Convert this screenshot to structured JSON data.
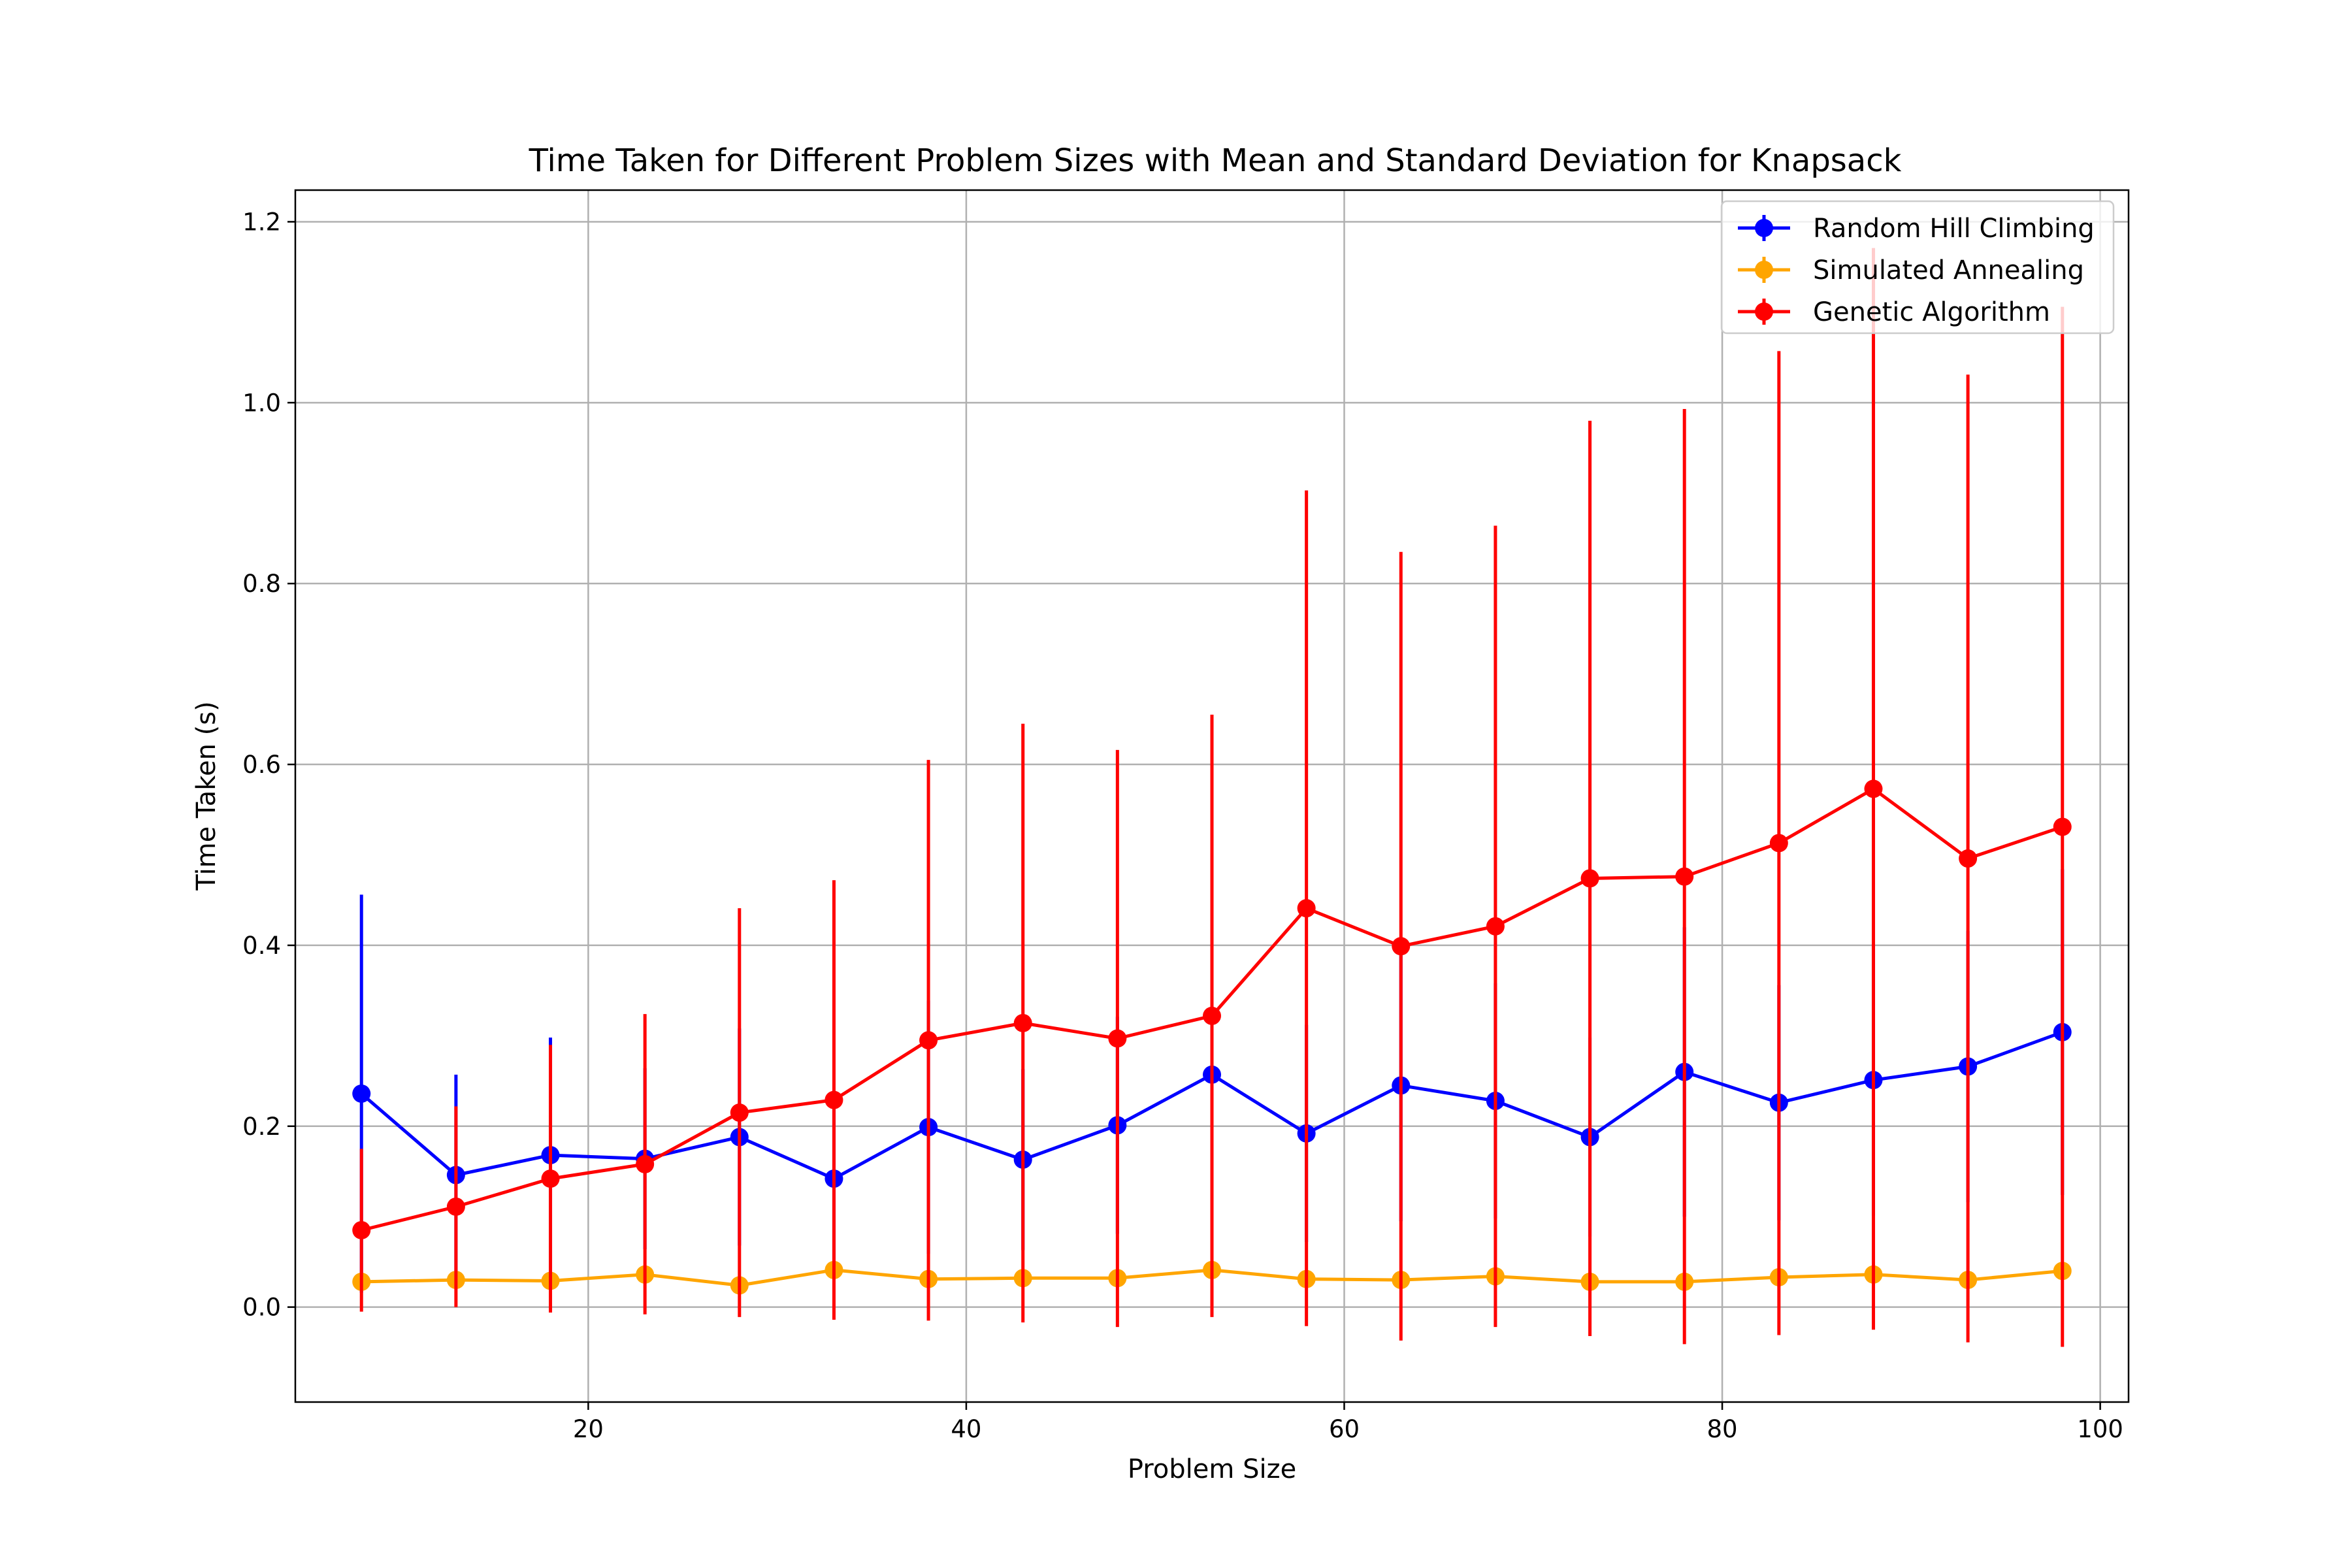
{
  "chart_data": {
    "type": "line",
    "title": "Time Taken for Different Problem Sizes with Mean and Standard Deviation for Knapsack",
    "xlabel": "Problem Size",
    "ylabel": "Time Taken (s)",
    "xlim": [
      4.5,
      101.5
    ],
    "ylim": [
      -0.105,
      1.235
    ],
    "xticks": [
      20,
      40,
      60,
      80,
      100
    ],
    "yticks": [
      0.0,
      0.2,
      0.4,
      0.6,
      0.8,
      1.0,
      1.2
    ],
    "xtick_labels": [
      "20",
      "40",
      "60",
      "80",
      "100"
    ],
    "ytick_labels": [
      "0.0",
      "0.2",
      "0.4",
      "0.6",
      "0.8",
      "1.0",
      "1.2"
    ],
    "grid": true,
    "legend_position": "top-right",
    "x": [
      8,
      13,
      18,
      23,
      28,
      33,
      38,
      43,
      48,
      53,
      58,
      63,
      68,
      73,
      78,
      83,
      88,
      93,
      98
    ],
    "series": [
      {
        "name": "Random Hill Climbing",
        "color": "#0000ff",
        "values": [
          0.236,
          0.146,
          0.168,
          0.164,
          0.188,
          0.142,
          0.199,
          0.163,
          0.201,
          0.257,
          0.192,
          0.245,
          0.228,
          0.188,
          0.26,
          0.226,
          0.251,
          0.266,
          0.304
        ],
        "std": [
          0.22,
          0.111,
          0.13,
          0.1,
          0.12,
          0.09,
          0.14,
          0.1,
          0.12,
          0.17,
          0.12,
          0.15,
          0.13,
          0.11,
          0.16,
          0.13,
          0.15,
          0.15,
          0.18
        ]
      },
      {
        "name": "Simulated Annealing",
        "color": "#ffa500",
        "values": [
          0.028,
          0.03,
          0.029,
          0.036,
          0.024,
          0.041,
          0.031,
          0.032,
          0.032,
          0.041,
          0.031,
          0.03,
          0.034,
          0.028,
          0.028,
          0.033,
          0.036,
          0.03,
          0.04
        ],
        "std": [
          0.006,
          0.006,
          0.006,
          0.007,
          0.005,
          0.008,
          0.006,
          0.006,
          0.006,
          0.008,
          0.006,
          0.006,
          0.007,
          0.006,
          0.006,
          0.007,
          0.007,
          0.006,
          0.008
        ]
      },
      {
        "name": "Genetic Algorithm",
        "color": "#ff0000",
        "values": [
          0.085,
          0.111,
          0.142,
          0.158,
          0.215,
          0.229,
          0.295,
          0.314,
          0.297,
          0.322,
          0.441,
          0.399,
          0.421,
          0.474,
          0.476,
          0.513,
          0.573,
          0.496,
          0.531
        ],
        "std": [
          0.09,
          0.111,
          0.148,
          0.166,
          0.226,
          0.243,
          0.31,
          0.331,
          0.319,
          0.333,
          0.462,
          0.436,
          0.443,
          0.506,
          0.517,
          0.544,
          0.598,
          0.535,
          0.575
        ]
      }
    ]
  }
}
